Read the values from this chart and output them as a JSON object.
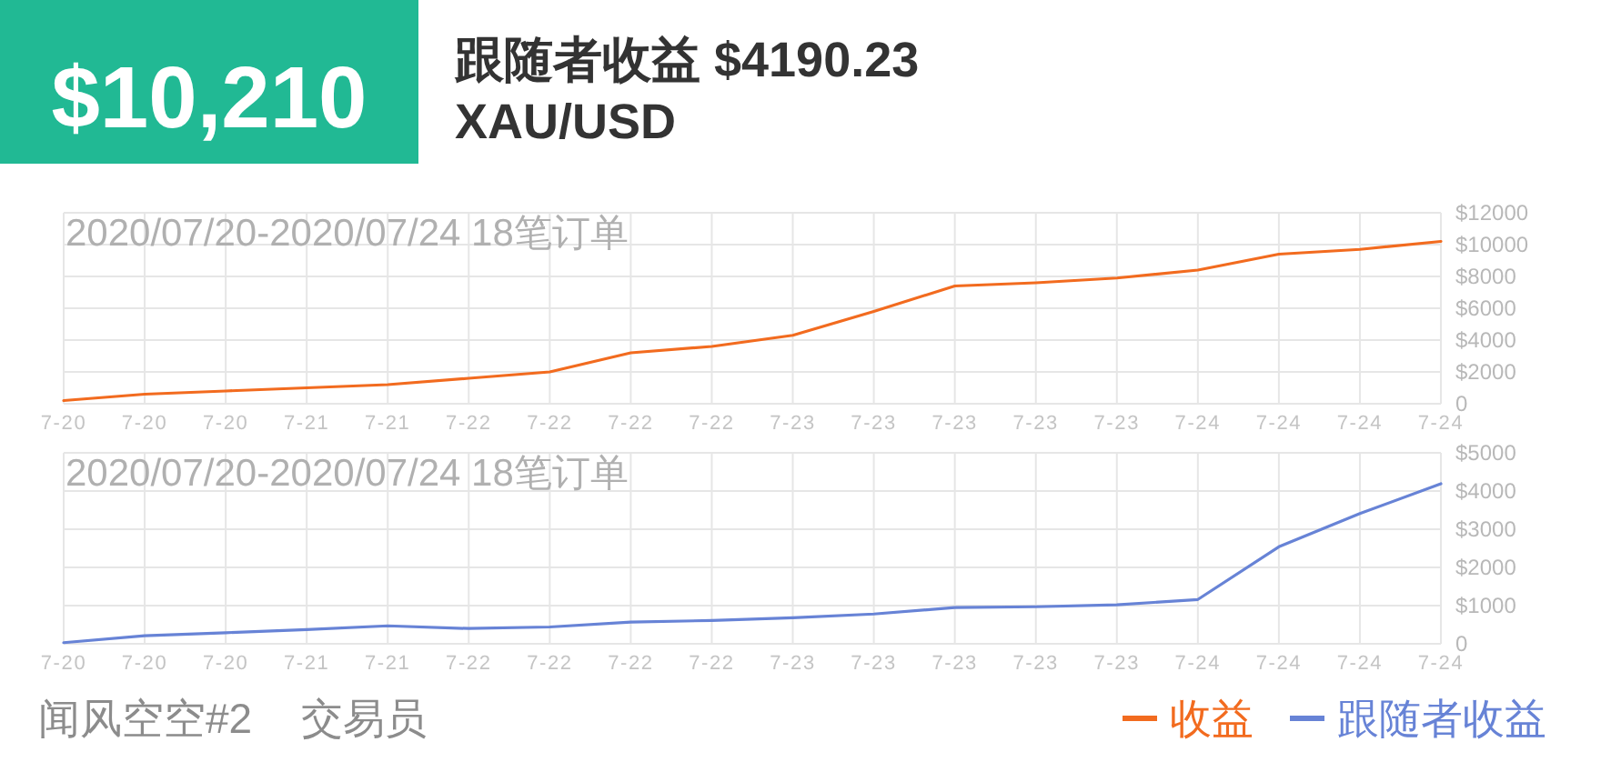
{
  "chart_data": [
    {
      "type": "other",
      "title": "$10,210",
      "subtitle": "跟随者收益 $4190.23",
      "annotations": [
        "XAU/USD"
      ]
    },
    {
      "type": "line",
      "title": "2020/07/20-2020/07/24 18笔订单",
      "categories": [
        "7-20",
        "7-20",
        "7-20",
        "7-21",
        "7-21",
        "7-22",
        "7-22",
        "7-22",
        "7-22",
        "7-23",
        "7-23",
        "7-23",
        "7-23",
        "7-23",
        "7-24",
        "7-24",
        "7-24",
        "7-24"
      ],
      "series": [
        {
          "name": "收益",
          "color": "#f26b1f",
          "values": [
            200,
            600,
            800,
            1000,
            1200,
            1600,
            2000,
            3200,
            3600,
            4300,
            5800,
            7400,
            7600,
            7900,
            8400,
            9400,
            9700,
            10200
          ]
        }
      ],
      "ylim": [
        0,
        12000
      ],
      "yticks": [
        0,
        {
          "value": 2000,
          "label": "$2000"
        },
        {
          "value": 4000,
          "label": "$4000"
        },
        {
          "value": 6000,
          "label": "$6000"
        },
        {
          "value": 8000,
          "label": "$8000"
        },
        {
          "value": 10000,
          "label": "$10000"
        },
        {
          "value": 12000,
          "label": "$12000"
        }
      ],
      "grid": true,
      "legend": "bottom right"
    },
    {
      "type": "line",
      "title": "2020/07/20-2020/07/24 18笔订单",
      "categories": [
        "7-20",
        "7-20",
        "7-20",
        "7-21",
        "7-21",
        "7-22",
        "7-22",
        "7-22",
        "7-22",
        "7-23",
        "7-23",
        "7-23",
        "7-23",
        "7-23",
        "7-24",
        "7-24",
        "7-24",
        "7-24"
      ],
      "series": [
        {
          "name": "跟随者收益",
          "color": "#6783d6",
          "values": [
            30,
            210,
            290,
            370,
            470,
            400,
            440,
            570,
            610,
            680,
            780,
            950,
            970,
            1020,
            1160,
            2540,
            3410,
            4190
          ]
        }
      ],
      "ylim": [
        0,
        5000
      ],
      "yticks": [
        0,
        {
          "value": 1000,
          "label": "$1000"
        },
        {
          "value": 2000,
          "label": "$2000"
        },
        {
          "value": 3000,
          "label": "$3000"
        },
        {
          "value": 4000,
          "label": "$4000"
        },
        {
          "value": 5000,
          "label": "$5000"
        }
      ],
      "grid": true,
      "legend": "bottom right",
      "annotations": [
        "闻风空空#2",
        "交易员"
      ]
    }
  ]
}
